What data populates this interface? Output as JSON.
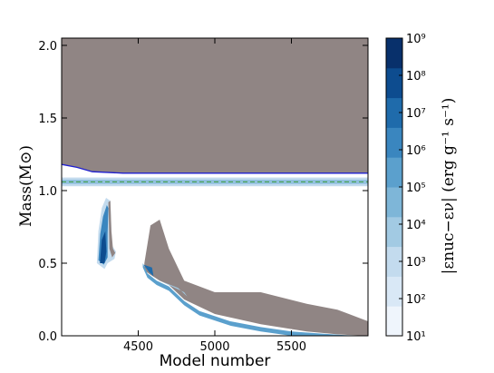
{
  "chart_data": {
    "type": "heatmap",
    "title": "",
    "xlabel": "Model number",
    "ylabel": "Mass(M⊙)",
    "xlim": [
      4000,
      6000
    ],
    "ylim": [
      0.0,
      2.05
    ],
    "x_ticks": [
      {
        "value": 4500,
        "label": "4500"
      },
      {
        "value": 5000,
        "label": "5000"
      },
      {
        "value": 5500,
        "label": "5500"
      }
    ],
    "y_ticks": [
      {
        "value": 0.0,
        "label": "0.0"
      },
      {
        "value": 0.5,
        "label": "0.5"
      },
      {
        "value": 1.0,
        "label": "1.0"
      },
      {
        "value": 1.5,
        "label": "1.5"
      },
      {
        "value": 2.0,
        "label": "2.0"
      }
    ],
    "colorbar": {
      "label": "|εnuc−εν| (erg g⁻¹ s⁻¹)",
      "scale": "log",
      "tick_labels": [
        "10¹",
        "10²",
        "10³",
        "10⁴",
        "10⁵",
        "10⁶",
        "10⁷",
        "10⁸",
        "10⁹"
      ],
      "colors": [
        "#eff5fc",
        "#d9e8f6",
        "#c3dbee",
        "#a2cae3",
        "#7eb6d8",
        "#5ba0cd",
        "#3a86bf",
        "#1f6bab",
        "#0d4c8f",
        "#08306b"
      ]
    },
    "colors": {
      "convective": "#908584",
      "boundary_line": "#1f1fd0",
      "dashed_line": "#3a9a3a"
    },
    "regions": {
      "envelope_convection": {
        "x": [
          4000,
          4100,
          4200,
          4400,
          4800,
          5500,
          6000
        ],
        "y_bottom": [
          1.18,
          1.16,
          1.13,
          1.12,
          1.12,
          1.12,
          1.12
        ],
        "y_top": 2.05
      },
      "burning_shell": {
        "x_range": [
          4000,
          6000
        ],
        "y_range": [
          1.03,
          1.09
        ]
      },
      "dashed_line": {
        "y": 1.06
      },
      "core_convection_1": {
        "x": [
          4230,
          4260,
          4300,
          4320,
          4330,
          4360,
          4340,
          4260
        ],
        "y_top": [
          0.75,
          0.9,
          0.95,
          0.92,
          0.6,
          0.58,
          0.52,
          0.48
        ]
      },
      "core_convection_2": {
        "x": [
          4540,
          4580,
          4640,
          4700,
          4800,
          5000,
          5300,
          5600,
          5800,
          6000
        ],
        "y_top": [
          0.5,
          0.76,
          0.8,
          0.6,
          0.38,
          0.3,
          0.3,
          0.22,
          0.18,
          0.1
        ],
        "y_bottom": [
          0.45,
          0.42,
          0.38,
          0.35,
          0.25,
          0.15,
          0.08,
          0.03,
          0.01,
          0.0
        ]
      }
    }
  }
}
